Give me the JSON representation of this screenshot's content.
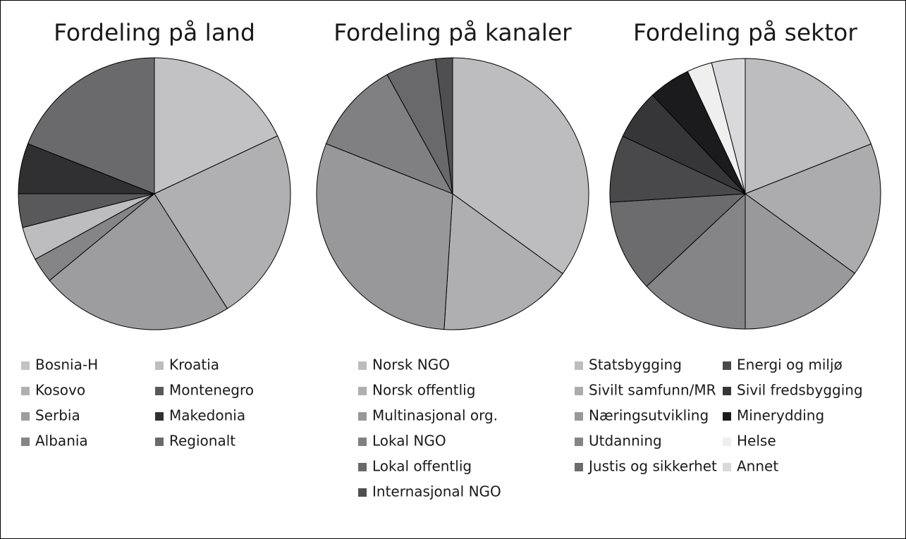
{
  "chart_data": [
    {
      "type": "pie",
      "title": "Fordeling på land",
      "categories": [
        "Bosnia-H",
        "Kosovo",
        "Serbia",
        "Albania",
        "Kroatia",
        "Montenegro",
        "Makedonia",
        "Regionalt"
      ],
      "values": [
        18,
        23,
        23,
        3,
        4,
        4,
        6,
        19
      ],
      "colors": [
        "#c2c2c4",
        "#b0b0b2",
        "#9d9d9f",
        "#858587",
        "#bdbdbf",
        "#59595b",
        "#303032",
        "#6a6a6c"
      ]
    },
    {
      "type": "pie",
      "title": "Fordeling på kanaler",
      "categories": [
        "Norsk NGO",
        "Norsk offentlig",
        "Multinasjonal org.",
        "Lokal NGO",
        "Lokal offentlig",
        "Internasjonal NGO"
      ],
      "values": [
        35,
        16,
        30,
        11,
        6,
        2
      ],
      "colors": [
        "#bdbdbf",
        "#afafb1",
        "#98989a",
        "#808082",
        "#69696b",
        "#4f4f51"
      ]
    },
    {
      "type": "pie",
      "title": "Fordeling på sektor",
      "categories": [
        "Statsbygging",
        "Sivilt samfunn/MR",
        "Næringsutvikling",
        "Utdanning",
        "Justis og sikkerhet",
        "Energi og miljø",
        "Sivil fredsbygging",
        "Minerydding",
        "Helse",
        "Annet"
      ],
      "values": [
        19,
        16,
        15,
        13,
        11,
        8,
        6,
        5,
        3,
        4
      ],
      "colors": [
        "#bdbdbf",
        "#acacae",
        "#99999b",
        "#858587",
        "#6c6c6e",
        "#49494b",
        "#363638",
        "#1b1b1d",
        "#efefef",
        "#d9d9db"
      ]
    }
  ]
}
